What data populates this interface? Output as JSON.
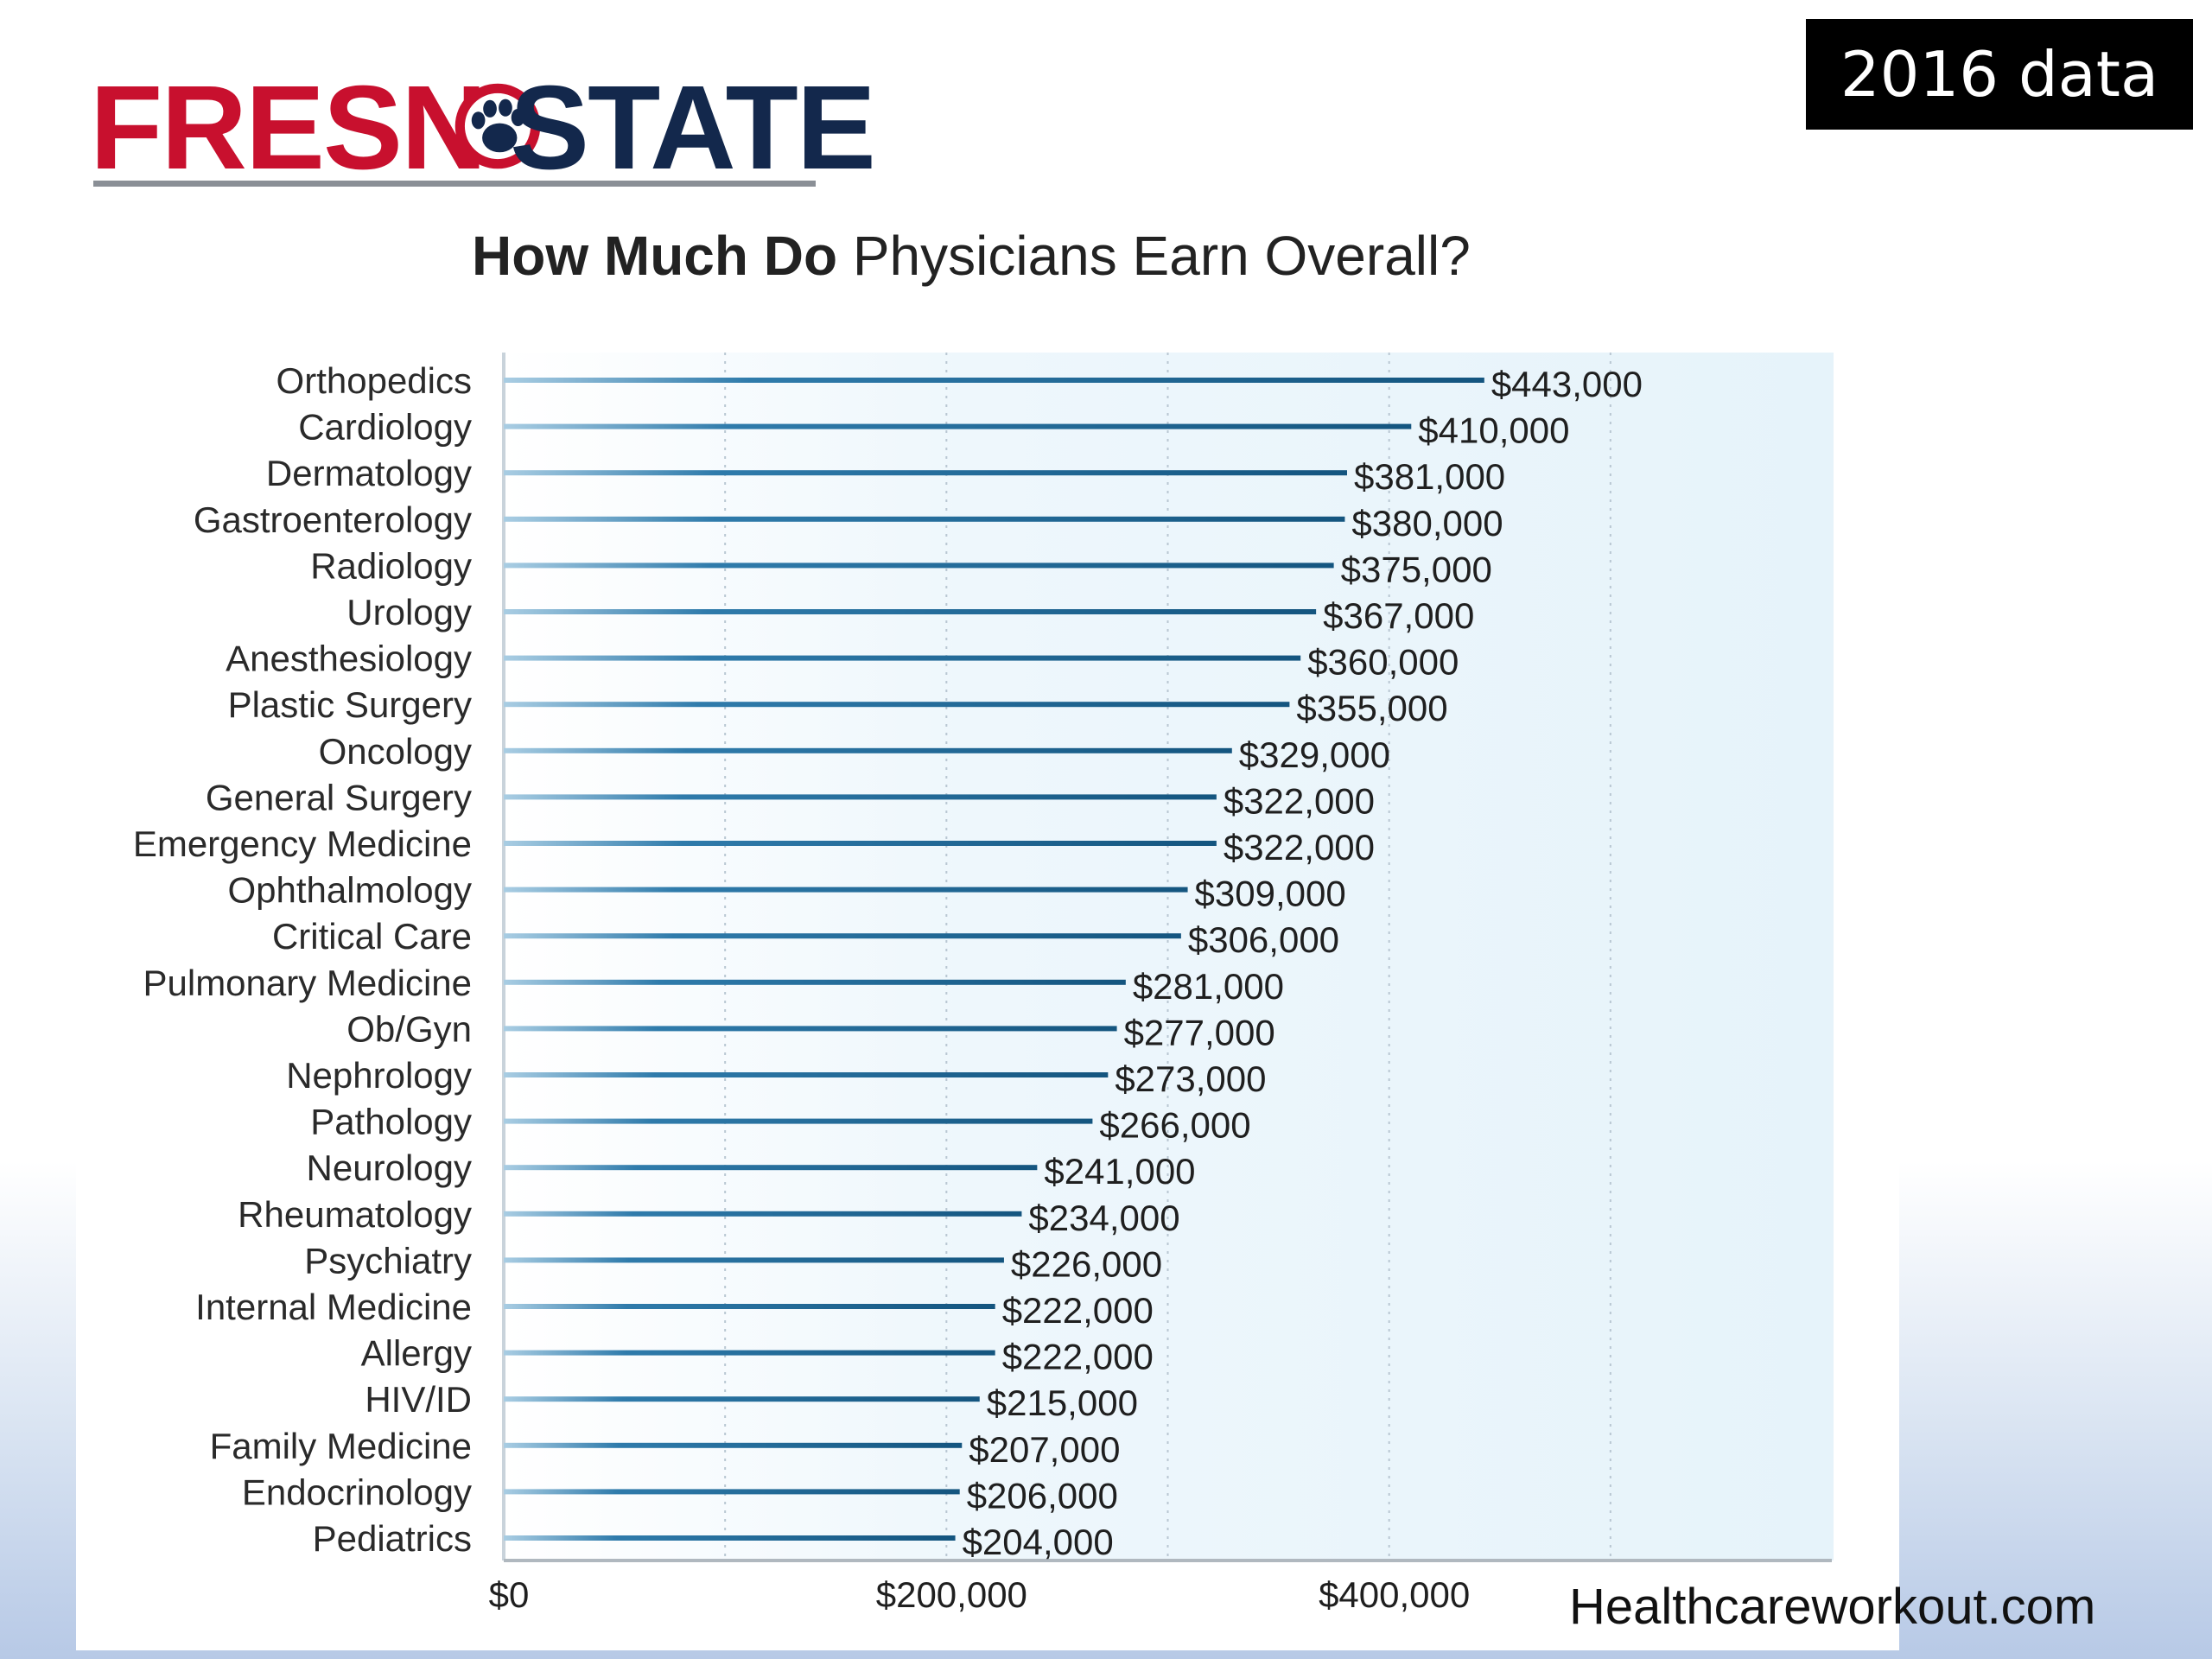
{
  "logo": {
    "text_left": "FRESN",
    "text_right": "STATE"
  },
  "badge": {
    "text": "2016 data"
  },
  "watermark": {
    "text": "Healthcareworkout.com"
  },
  "colors": {
    "bar": "#1b6190",
    "logo_red": "#c8102e",
    "logo_navy": "#13284c"
  },
  "chart_data": {
    "type": "bar",
    "orientation": "horizontal",
    "title_bold": "How Much Do",
    "title_rest": " Physicians Earn Overall?",
    "categories": [
      "Orthopedics",
      "Cardiology",
      "Dermatology",
      "Gastroenterology",
      "Radiology",
      "Urology",
      "Anesthesiology",
      "Plastic Surgery",
      "Oncology",
      "General Surgery",
      "Emergency Medicine",
      "Ophthalmology",
      "Critical Care",
      "Pulmonary Medicine",
      "Ob/Gyn",
      "Nephrology",
      "Pathology",
      "Neurology",
      "Rheumatology",
      "Psychiatry",
      "Internal Medicine",
      "Allergy",
      "HIV/ID",
      "Family Medicine",
      "Endocrinology",
      "Pediatrics"
    ],
    "values": [
      443000,
      410000,
      381000,
      380000,
      375000,
      367000,
      360000,
      355000,
      329000,
      322000,
      322000,
      309000,
      306000,
      281000,
      277000,
      273000,
      266000,
      241000,
      234000,
      226000,
      222000,
      222000,
      215000,
      207000,
      206000,
      204000
    ],
    "value_labels": [
      "$443,000",
      "$410,000",
      "$381,000",
      "$380,000",
      "$375,000",
      "$367,000",
      "$360,000",
      "$355,000",
      "$329,000",
      "$322,000",
      "$322,000",
      "$309,000",
      "$306,000",
      "$281,000",
      "$277,000",
      "$273,000",
      "$266,000",
      "$241,000",
      "$234,000",
      "$226,000",
      "$222,000",
      "$222,000",
      "$215,000",
      "$207,000",
      "$206,000",
      "$204,000"
    ],
    "xlim": [
      0,
      600000
    ],
    "xticks": [
      0,
      200000,
      400000
    ],
    "xtick_labels": [
      "$0",
      "$200,000",
      "$400,000"
    ],
    "gridlines_x": [
      100000,
      200000,
      300000,
      400000,
      500000
    ],
    "xlabel": "",
    "ylabel": ""
  }
}
